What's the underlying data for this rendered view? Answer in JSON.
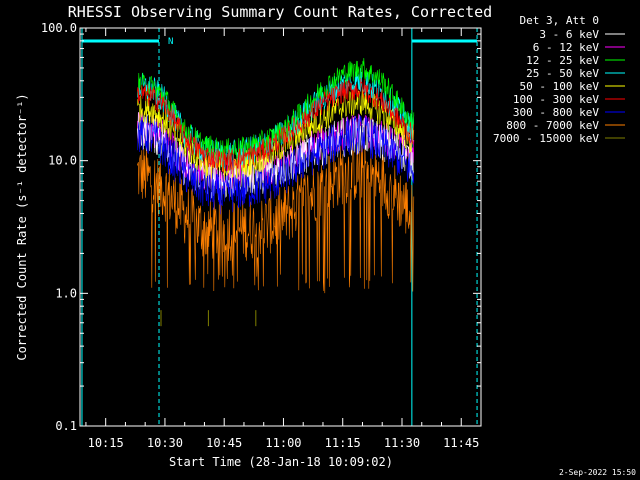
{
  "chart_data": {
    "type": "line",
    "title": "RHESSI Observing Summary Count Rates, Corrected",
    "xlabel": "Start Time (28-Jan-18 10:09:02)",
    "ylabel": "Corrected Count Rate (s⁻¹ detector⁻¹)",
    "y_scale": "log",
    "ylim": [
      0.1,
      100.0
    ],
    "xlim_minutes": [
      608.5,
      710.0
    ],
    "x_ticks": [
      "10:15",
      "10:30",
      "10:45",
      "11:00",
      "11:15",
      "11:30",
      "11:45"
    ],
    "x_tick_minutes": [
      615,
      630,
      645,
      660,
      675,
      690,
      705
    ],
    "y_ticks": [
      "0.1",
      "1.0",
      "10.0",
      "100.0"
    ],
    "y_tick_values": [
      0.1,
      1.0,
      10.0,
      100.0
    ],
    "legend_header": "Det 3, Att 0",
    "legend_position": "top-right, outside plot",
    "night_periods": [
      {
        "start_min": 609.0,
        "end_min": 628.5,
        "label": "N"
      },
      {
        "start_min": 692.5,
        "end_min": 709.0,
        "label": ""
      }
    ],
    "day_window_min": [
      623.0,
      693.0
    ],
    "series": [
      {
        "name": "3 - 6 keV",
        "color": "#ffffff",
        "values": [
          [
            624,
            17
          ],
          [
            627,
            16
          ],
          [
            630,
            14
          ],
          [
            635,
            9
          ],
          [
            640,
            7.5
          ],
          [
            645,
            7
          ],
          [
            650,
            7.5
          ],
          [
            655,
            8
          ],
          [
            660,
            9
          ],
          [
            665,
            11
          ],
          [
            670,
            13
          ],
          [
            675,
            15
          ],
          [
            680,
            16
          ],
          [
            685,
            14
          ],
          [
            690,
            12
          ],
          [
            692,
            10
          ]
        ]
      },
      {
        "name": "6 - 12 keV",
        "color": "#ff00ff",
        "values": [
          [
            624,
            18
          ],
          [
            627,
            17
          ],
          [
            630,
            15
          ],
          [
            635,
            10
          ],
          [
            640,
            8
          ],
          [
            645,
            7.5
          ],
          [
            650,
            8
          ],
          [
            655,
            8.5
          ],
          [
            660,
            9.5
          ],
          [
            665,
            12
          ],
          [
            670,
            14
          ],
          [
            675,
            16
          ],
          [
            680,
            17
          ],
          [
            685,
            15
          ],
          [
            690,
            13
          ],
          [
            692,
            11
          ]
        ]
      },
      {
        "name": "12 - 25 keV",
        "color": "#00ff00",
        "values": [
          [
            624,
            38
          ],
          [
            627,
            36
          ],
          [
            630,
            30
          ],
          [
            635,
            17
          ],
          [
            640,
            13
          ],
          [
            645,
            12
          ],
          [
            650,
            12.5
          ],
          [
            655,
            14
          ],
          [
            660,
            17
          ],
          [
            665,
            24
          ],
          [
            670,
            35
          ],
          [
            675,
            45
          ],
          [
            680,
            50
          ],
          [
            685,
            40
          ],
          [
            690,
            25
          ],
          [
            692,
            20
          ]
        ]
      },
      {
        "name": "25 - 50 keV",
        "color": "#00ffff",
        "values": [
          [
            624,
            36
          ],
          [
            627,
            34
          ],
          [
            630,
            28
          ],
          [
            635,
            16
          ],
          [
            640,
            12
          ],
          [
            645,
            11
          ],
          [
            650,
            11.5
          ],
          [
            655,
            13
          ],
          [
            660,
            16
          ],
          [
            665,
            22
          ],
          [
            670,
            30
          ],
          [
            675,
            38
          ],
          [
            680,
            40
          ],
          [
            685,
            32
          ],
          [
            690,
            22
          ],
          [
            692,
            18
          ]
        ]
      },
      {
        "name": "50 - 100 keV",
        "color": "#ffff00",
        "values": [
          [
            624,
            25
          ],
          [
            627,
            24
          ],
          [
            630,
            20
          ],
          [
            635,
            13
          ],
          [
            640,
            9.5
          ],
          [
            645,
            9
          ],
          [
            650,
            9.5
          ],
          [
            655,
            10.5
          ],
          [
            660,
            13
          ],
          [
            665,
            17
          ],
          [
            670,
            21
          ],
          [
            675,
            26
          ],
          [
            680,
            28
          ],
          [
            685,
            23
          ],
          [
            690,
            17
          ],
          [
            692,
            14
          ]
        ]
      },
      {
        "name": "100 - 300 keV",
        "color": "#ff0000",
        "values": [
          [
            624,
            32
          ],
          [
            627,
            30
          ],
          [
            630,
            26
          ],
          [
            635,
            15
          ],
          [
            640,
            11
          ],
          [
            645,
            10
          ],
          [
            650,
            10.5
          ],
          [
            655,
            12
          ],
          [
            660,
            15
          ],
          [
            665,
            20
          ],
          [
            670,
            27
          ],
          [
            675,
            33
          ],
          [
            680,
            35
          ],
          [
            685,
            28
          ],
          [
            690,
            19
          ],
          [
            692,
            16
          ]
        ]
      },
      {
        "name": "300 - 800 keV",
        "color": "#0000ff",
        "values": [
          [
            624,
            16
          ],
          [
            627,
            15
          ],
          [
            630,
            12
          ],
          [
            635,
            8
          ],
          [
            640,
            6
          ],
          [
            645,
            5.5
          ],
          [
            650,
            6
          ],
          [
            655,
            6.5
          ],
          [
            660,
            7.5
          ],
          [
            665,
            10
          ],
          [
            670,
            12
          ],
          [
            675,
            15
          ],
          [
            680,
            16
          ],
          [
            685,
            13
          ],
          [
            690,
            10
          ],
          [
            692,
            8.5
          ]
        ]
      },
      {
        "name": "800 - 7000 keV",
        "color": "#ff8000",
        "values": [
          [
            624,
            8
          ],
          [
            627,
            7
          ],
          [
            630,
            6
          ],
          [
            635,
            4
          ],
          [
            640,
            3
          ],
          [
            645,
            3
          ],
          [
            650,
            3
          ],
          [
            655,
            3.2
          ],
          [
            660,
            3.8
          ],
          [
            665,
            5
          ],
          [
            670,
            6.5
          ],
          [
            675,
            8
          ],
          [
            680,
            8.5
          ],
          [
            685,
            7
          ],
          [
            690,
            5
          ],
          [
            692,
            4
          ]
        ]
      },
      {
        "name": "7000 - 15000 keV",
        "color": "#808000",
        "values": [
          [
            629,
            0.65
          ],
          [
            641,
            0.65
          ],
          [
            653,
            0.65
          ]
        ]
      }
    ]
  },
  "footer": {
    "date": "2-Sep-2022 15:50"
  }
}
